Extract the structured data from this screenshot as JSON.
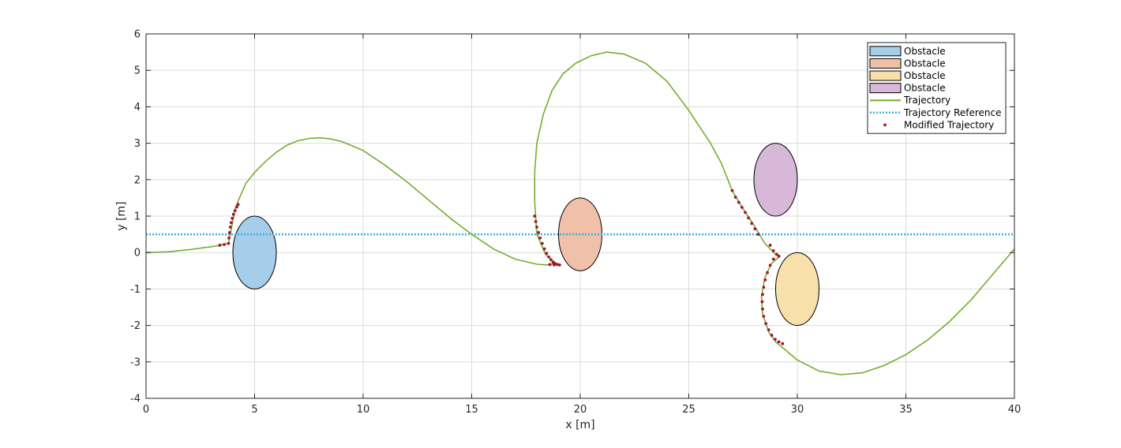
{
  "chart_data": {
    "type": "line",
    "xlabel": "x [m]",
    "ylabel": "y [m]",
    "xlim": [
      0,
      40
    ],
    "ylim": [
      -4,
      6
    ],
    "xticks": [
      0,
      5,
      10,
      15,
      20,
      25,
      30,
      35,
      40
    ],
    "yticks": [
      -4,
      -3,
      -2,
      -1,
      0,
      1,
      2,
      3,
      4,
      5,
      6
    ],
    "grid": true,
    "legend_position": "top-right",
    "obstacles": [
      {
        "name": "Obstacle",
        "cx": 5,
        "cy": 0,
        "rx": 1,
        "ry": 1,
        "color": "#a6cde9"
      },
      {
        "name": "Obstacle",
        "cx": 20,
        "cy": 0.5,
        "rx": 1,
        "ry": 1,
        "color": "#f1c0a9"
      },
      {
        "name": "Obstacle",
        "cx": 30,
        "cy": -1,
        "rx": 1,
        "ry": 1,
        "color": "#f7e0a9"
      },
      {
        "name": "Obstacle",
        "cx": 29,
        "cy": 2,
        "rx": 1,
        "ry": 1,
        "color": "#d7b8d9"
      }
    ],
    "trajectory": {
      "name": "Trajectory",
      "color": "#77ac30",
      "points": [
        [
          0,
          0
        ],
        [
          1,
          0.02
        ],
        [
          2,
          0.08
        ],
        [
          3,
          0.16
        ],
        [
          3.4,
          0.2
        ],
        [
          3.8,
          0.25
        ],
        [
          4.1,
          1.2
        ],
        [
          4.3,
          1.5
        ],
        [
          4.6,
          1.9
        ],
        [
          5,
          2.2
        ],
        [
          5.5,
          2.5
        ],
        [
          6,
          2.75
        ],
        [
          6.5,
          2.95
        ],
        [
          7,
          3.07
        ],
        [
          7.5,
          3.13
        ],
        [
          8,
          3.15
        ],
        [
          8.5,
          3.12
        ],
        [
          9,
          3.05
        ],
        [
          10,
          2.8
        ],
        [
          11,
          2.4
        ],
        [
          12,
          1.95
        ],
        [
          13,
          1.45
        ],
        [
          14,
          0.95
        ],
        [
          15,
          0.5
        ],
        [
          16,
          0.1
        ],
        [
          17,
          -0.18
        ],
        [
          18,
          -0.32
        ],
        [
          18.5,
          -0.34
        ],
        [
          18.9,
          -0.3
        ],
        [
          18.4,
          -0.05
        ],
        [
          18,
          0.5
        ],
        [
          17.9,
          1.4
        ],
        [
          17.9,
          2.2
        ],
        [
          18,
          3
        ],
        [
          18.3,
          3.8
        ],
        [
          18.7,
          4.45
        ],
        [
          19.2,
          4.9
        ],
        [
          19.8,
          5.2
        ],
        [
          20.5,
          5.4
        ],
        [
          21.2,
          5.5
        ],
        [
          22,
          5.45
        ],
        [
          23,
          5.2
        ],
        [
          24,
          4.7
        ],
        [
          25,
          3.9
        ],
        [
          26,
          3
        ],
        [
          26.5,
          2.45
        ],
        [
          27,
          1.7
        ],
        [
          27.5,
          1.2
        ],
        [
          28,
          0.75
        ],
        [
          28.5,
          0.25
        ],
        [
          29,
          -0.05
        ],
        [
          29.2,
          -0.1
        ],
        [
          28.8,
          -0.3
        ],
        [
          28.5,
          -0.7
        ],
        [
          28.35,
          -1.2
        ],
        [
          28.4,
          -1.7
        ],
        [
          28.7,
          -2.2
        ],
        [
          29,
          -2.45
        ],
        [
          29.5,
          -2.7
        ],
        [
          30,
          -2.95
        ],
        [
          31,
          -3.25
        ],
        [
          32,
          -3.35
        ],
        [
          33,
          -3.3
        ],
        [
          34,
          -3.1
        ],
        [
          35,
          -2.8
        ],
        [
          36,
          -2.4
        ],
        [
          37,
          -1.9
        ],
        [
          38,
          -1.3
        ],
        [
          39,
          -0.6
        ],
        [
          40,
          0.1
        ]
      ]
    },
    "reference": {
      "name": "Trajectory Reference",
      "y": 0.5,
      "color": "#3ab1de"
    },
    "modified_trajectory": {
      "name": "Modified Trajectory",
      "color": "#a2142f",
      "points": [
        [
          3.4,
          0.2
        ],
        [
          3.6,
          0.22
        ],
        [
          3.8,
          0.25
        ],
        [
          3.82,
          0.4
        ],
        [
          3.85,
          0.55
        ],
        [
          3.88,
          0.7
        ],
        [
          3.92,
          0.82
        ],
        [
          3.97,
          0.94
        ],
        [
          4.03,
          1.05
        ],
        [
          4.1,
          1.15
        ],
        [
          4.18,
          1.25
        ],
        [
          4.24,
          1.32
        ],
        [
          17.9,
          1.0
        ],
        [
          17.95,
          0.85
        ],
        [
          18.0,
          0.7
        ],
        [
          18.08,
          0.55
        ],
        [
          18.15,
          0.4
        ],
        [
          18.25,
          0.25
        ],
        [
          18.35,
          0.1
        ],
        [
          18.45,
          -0.02
        ],
        [
          18.55,
          -0.12
        ],
        [
          18.65,
          -0.2
        ],
        [
          18.75,
          -0.27
        ],
        [
          18.85,
          -0.31
        ],
        [
          18.95,
          -0.33
        ],
        [
          19.05,
          -0.34
        ],
        [
          18.6,
          -0.33
        ],
        [
          18.8,
          -0.34
        ],
        [
          27,
          1.7
        ],
        [
          27.15,
          1.52
        ],
        [
          27.3,
          1.38
        ],
        [
          27.45,
          1.24
        ],
        [
          27.6,
          1.1
        ],
        [
          27.75,
          0.95
        ],
        [
          27.9,
          0.8
        ],
        [
          28.05,
          0.65
        ],
        [
          28.2,
          0.5
        ],
        [
          28.75,
          0.2
        ],
        [
          28.9,
          0.05
        ],
        [
          29.05,
          -0.05
        ],
        [
          29.15,
          -0.1
        ],
        [
          28.9,
          -0.18
        ],
        [
          28.75,
          -0.35
        ],
        [
          28.62,
          -0.55
        ],
        [
          28.52,
          -0.75
        ],
        [
          28.45,
          -0.95
        ],
        [
          28.4,
          -1.15
        ],
        [
          28.38,
          -1.35
        ],
        [
          28.4,
          -1.55
        ],
        [
          28.45,
          -1.75
        ],
        [
          28.55,
          -1.95
        ],
        [
          28.68,
          -2.12
        ],
        [
          28.82,
          -2.27
        ],
        [
          28.98,
          -2.38
        ],
        [
          29.15,
          -2.45
        ],
        [
          29.32,
          -2.5
        ]
      ]
    }
  }
}
